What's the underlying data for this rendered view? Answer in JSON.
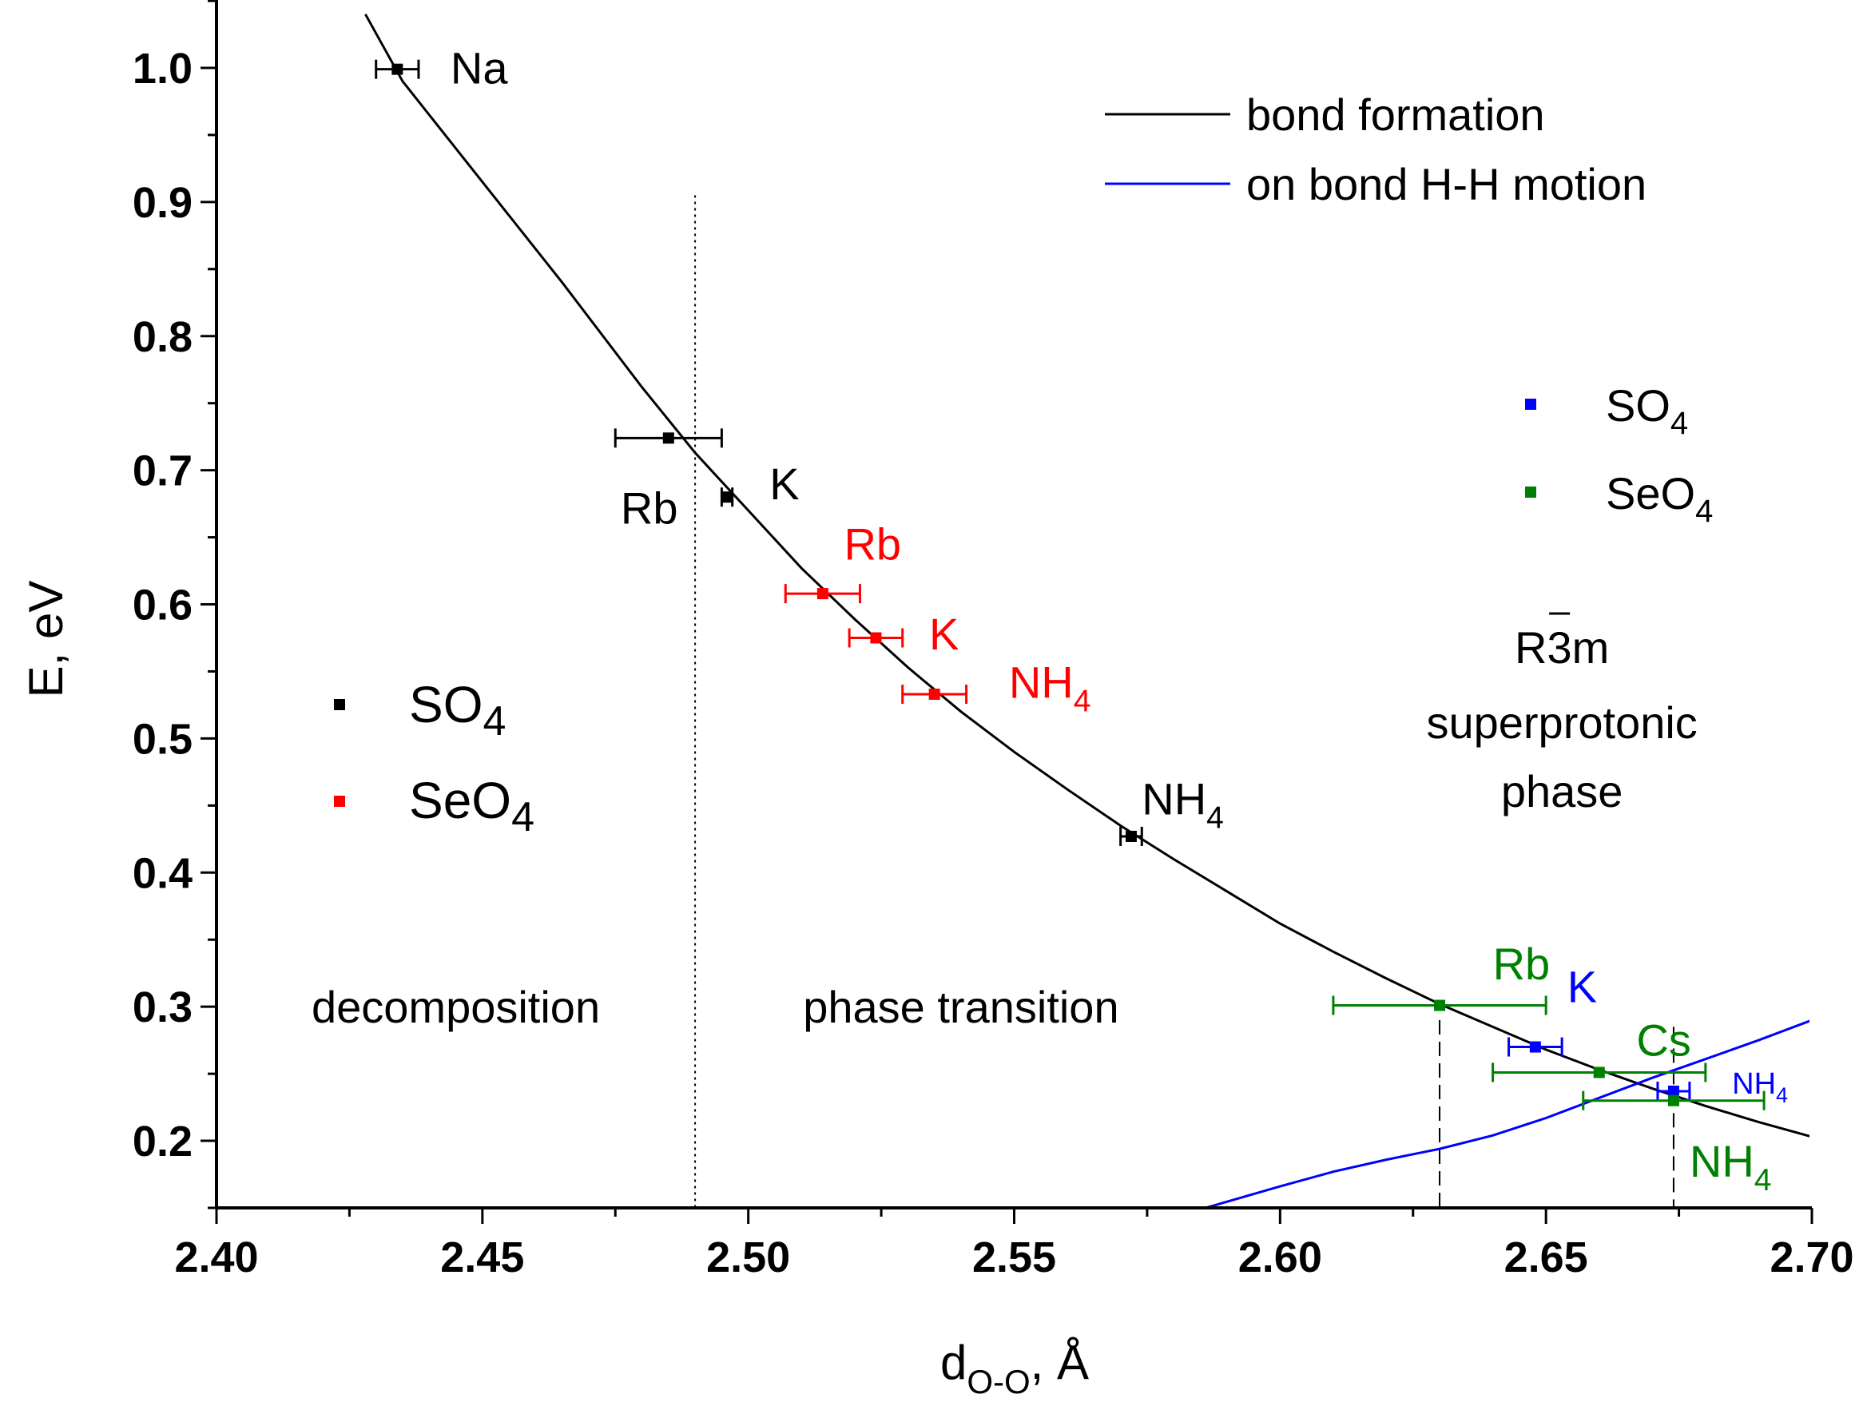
{
  "chart_data": {
    "type": "scatter",
    "title": "",
    "xlabel": {
      "main": "d",
      "sub": "O-O",
      "tail": ", Å"
    },
    "ylabel": "E, eV",
    "xlim": [
      2.4,
      2.7
    ],
    "ylim": [
      0.15,
      1.04
    ],
    "x_ticks": [
      "2.40",
      "2.45",
      "2.50",
      "2.55",
      "2.60",
      "2.65",
      "2.70"
    ],
    "y_ticks": [
      "0.2",
      "0.3",
      "0.4",
      "0.5",
      "0.6",
      "0.7",
      "0.8",
      "0.9",
      "1.0"
    ],
    "colors": {
      "black": "#000000",
      "red": "#ff0000",
      "blue": "#0000ff",
      "green": "#008000"
    },
    "lines": [
      {
        "name": "bond formation",
        "color": "#000000",
        "x": [
          2.428,
          2.435,
          2.45,
          2.465,
          2.48,
          2.49,
          2.5,
          2.51,
          2.52,
          2.53,
          2.54,
          2.55,
          2.56,
          2.57,
          2.58,
          2.59,
          2.6,
          2.61,
          2.62,
          2.63,
          2.64,
          2.65,
          2.66,
          2.67,
          2.68,
          2.69,
          2.7
        ],
        "y": [
          1.04,
          0.99,
          0.915,
          0.84,
          0.762,
          0.713,
          0.67,
          0.627,
          0.589,
          0.553,
          0.52,
          0.49,
          0.462,
          0.435,
          0.41,
          0.386,
          0.362,
          0.341,
          0.321,
          0.302,
          0.285,
          0.268,
          0.253,
          0.239,
          0.226,
          0.214,
          0.203
        ]
      },
      {
        "name": "on bond H-H motion",
        "color": "#0000ff",
        "x": [
          2.586,
          2.6,
          2.61,
          2.62,
          2.63,
          2.64,
          2.65,
          2.66,
          2.67,
          2.68,
          2.69,
          2.7
        ],
        "y": [
          0.15,
          0.166,
          0.177,
          0.186,
          0.194,
          0.204,
          0.217,
          0.232,
          0.247,
          0.261,
          0.275,
          0.29
        ]
      }
    ],
    "points": [
      {
        "name": "Na",
        "group": "SO4 (I)",
        "color": "#000000",
        "x": 2.434,
        "y": 0.999,
        "xerr": 0.004
      },
      {
        "name": "Rb",
        "group": "SO4 (I)",
        "color": "#000000",
        "x": 2.485,
        "y": 0.724,
        "xerr": 0.01
      },
      {
        "name": "K",
        "group": "SO4 (I)",
        "color": "#000000",
        "x": 2.496,
        "y": 0.68,
        "xerr": 0.001
      },
      {
        "name": "NH4",
        "group": "SO4 (I)",
        "color": "#000000",
        "x": 2.572,
        "y": 0.427,
        "xerr": 0.002
      },
      {
        "name": "Rb",
        "group": "SeO4 (I)",
        "color": "#ff0000",
        "x": 2.514,
        "y": 0.608,
        "xerr": 0.007
      },
      {
        "name": "K",
        "group": "SeO4 (I)",
        "color": "#ff0000",
        "x": 2.524,
        "y": 0.575,
        "xerr": 0.005
      },
      {
        "name": "NH4",
        "group": "SeO4 (I)",
        "color": "#ff0000",
        "x": 2.535,
        "y": 0.533,
        "xerr": 0.006
      },
      {
        "name": "K",
        "group": "SO4 (II)",
        "color": "#0000ff",
        "x": 2.648,
        "y": 0.27,
        "xerr": 0.005
      },
      {
        "name": "NH4",
        "group": "SO4 (II)",
        "color": "#0000ff",
        "x": 2.674,
        "y": 0.237,
        "xerr": 0.003
      },
      {
        "name": "Rb",
        "group": "SeO4 (II)",
        "color": "#008000",
        "x": 2.63,
        "y": 0.301,
        "xerr": 0.02
      },
      {
        "name": "Cs",
        "group": "SeO4 (II)",
        "color": "#008000",
        "x": 2.66,
        "y": 0.251,
        "xerr": 0.02
      },
      {
        "name": "NH4",
        "group": "SeO4 (II)",
        "color": "#008000",
        "x": 2.674,
        "y": 0.23,
        "xerr": 0.017
      }
    ],
    "vlines": [
      {
        "x": 2.49,
        "style": "dotted",
        "ymax": 0.905
      },
      {
        "x": 2.63,
        "style": "dashed",
        "ymax": 0.29
      },
      {
        "x": 2.674,
        "style": "dashed",
        "ymax": 0.285
      }
    ],
    "point_labels": [
      {
        "text": "Na",
        "color": "#000000",
        "x": 2.444,
        "y": 1.0
      },
      {
        "text": "Rb",
        "color": "#000000",
        "x": 2.476,
        "y": 0.672
      },
      {
        "text": "K",
        "color": "#000000",
        "x": 2.504,
        "y": 0.69
      },
      {
        "text": "NH",
        "sub": "4",
        "color": "#000000",
        "x": 2.574,
        "y": 0.455
      },
      {
        "text": "Rb",
        "color": "#ff0000",
        "x": 2.518,
        "y": 0.645
      },
      {
        "text": "K",
        "color": "#ff0000",
        "x": 2.534,
        "y": 0.578
      },
      {
        "text": "NH",
        "sub": "4",
        "color": "#ff0000",
        "x": 2.549,
        "y": 0.542
      },
      {
        "text": "Rb",
        "color": "#008000",
        "x": 2.64,
        "y": 0.332
      },
      {
        "text": "K",
        "color": "#0000ff",
        "x": 2.654,
        "y": 0.315
      },
      {
        "text": "Cs",
        "color": "#008000",
        "x": 2.667,
        "y": 0.275
      },
      {
        "text": "NH",
        "sub": "4",
        "color": "#0000ff",
        "x": 2.685,
        "y": 0.243,
        "small": true
      },
      {
        "text": "NH",
        "sub": "4",
        "color": "#008000",
        "x": 2.677,
        "y": 0.185
      }
    ],
    "region_labels": [
      {
        "text": "decomposition",
        "x": 2.445,
        "y": 0.3
      },
      {
        "text": "phase transition",
        "x": 2.54,
        "y": 0.3
      }
    ],
    "phase_label": {
      "line1": "R3m",
      "line2": "superprotonic",
      "line3": "phase",
      "x": 2.653
    },
    "legend_lines": [
      {
        "label": "bond formation",
        "color": "#000000"
      },
      {
        "label": "on bond H-H motion",
        "color": "#0000ff"
      }
    ],
    "legend_left": [
      {
        "label": "SO",
        "sub": "4",
        "color": "#000000"
      },
      {
        "label": "SeO",
        "sub": "4",
        "color": "#ff0000"
      }
    ],
    "legend_right": [
      {
        "label": "SO",
        "sub": "4",
        "color": "#0000ff"
      },
      {
        "label": "SeO",
        "sub": "4",
        "color": "#008000"
      }
    ]
  }
}
